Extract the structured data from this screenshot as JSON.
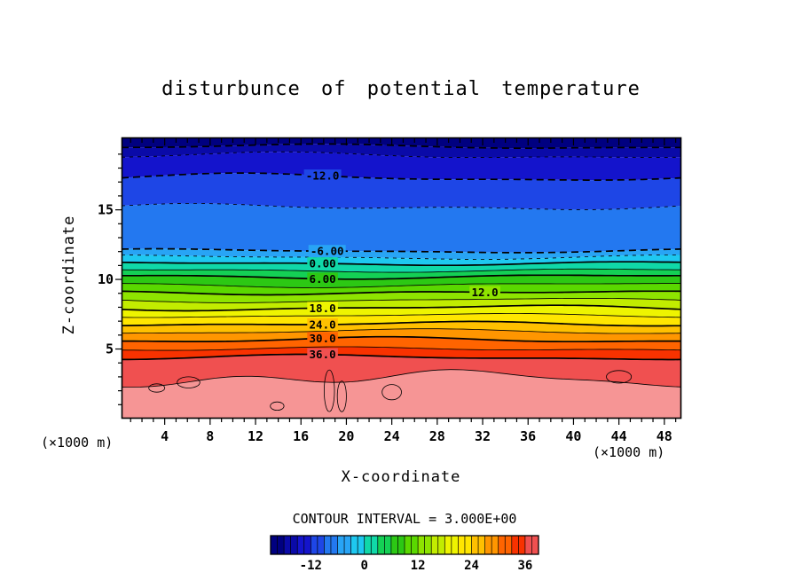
{
  "title": "disturbunce of potential temperature",
  "axis": {
    "x_label": "X-coordinate",
    "z_label": "Z-coordinate",
    "x_unit_note": "(×1000 m)",
    "z_unit_note": "(×1000 m)"
  },
  "contour_note": "CONTOUR INTERVAL = 3.000E+00",
  "chart_data": {
    "type": "heatmap",
    "variant": "filled-contour",
    "title": "disturbunce of potential temperature",
    "xlabel": "X-coordinate (×1000 m)",
    "ylabel": "Z-coordinate (×1000 m)",
    "x_range": [
      0,
      50
    ],
    "z_range": [
      0,
      20.2
    ],
    "x_ticks": [
      4,
      8,
      12,
      16,
      20,
      24,
      28,
      32,
      36,
      40,
      44,
      48
    ],
    "z_ticks": [
      5,
      10,
      15
    ],
    "contour_interval": 3,
    "palette_min": -21,
    "palette": [
      "#000080",
      "#0a0aa8",
      "#1414cc",
      "#1e46e6",
      "#2378f0",
      "#28a4f5",
      "#1ec8f0",
      "#10d8a8",
      "#14d055",
      "#2cc814",
      "#5ad800",
      "#8ee400",
      "#c2ec00",
      "#eef400",
      "#ffe600",
      "#ffc000",
      "#ff9600",
      "#ff6400",
      "#f83200",
      "#f05050"
    ],
    "overflow_color": "#f69595",
    "contours": [
      {
        "level": -18,
        "z_mean": 19.55
      },
      {
        "level": -15,
        "z_mean": 18.9
      },
      {
        "level": -12,
        "z_mean": 17.33,
        "label": "-12.0",
        "label_x": 17.9
      },
      {
        "level": -9,
        "z_mean": 15.2
      },
      {
        "level": -6,
        "z_mean": 12.05,
        "label": "-6.00",
        "label_x": 18.3
      },
      {
        "level": -3,
        "z_mean": 11.6
      },
      {
        "level": 0,
        "z_mean": 11.15,
        "label": "0.00",
        "label_x": 17.9
      },
      {
        "level": 3,
        "z_mean": 10.65
      },
      {
        "level": 6,
        "z_mean": 10.2,
        "label": "6.00",
        "label_x": 17.9
      },
      {
        "level": 9,
        "z_mean": 9.6
      },
      {
        "level": 12,
        "z_mean": 9.05,
        "label": "12.0",
        "label_x": 32.2
      },
      {
        "level": 15,
        "z_mean": 8.5
      },
      {
        "level": 18,
        "z_mean": 7.95,
        "label": "18.0",
        "label_x": 17.9
      },
      {
        "level": 21,
        "z_mean": 7.4
      },
      {
        "level": 24,
        "z_mean": 6.8,
        "label": "24.0",
        "label_x": 17.9
      },
      {
        "level": 27,
        "z_mean": 6.25
      },
      {
        "level": 30,
        "z_mean": 5.65,
        "label": "30.0",
        "label_x": 17.9
      },
      {
        "level": 33,
        "z_mean": 5.0
      },
      {
        "level": 36,
        "z_mean": 4.4,
        "label": "36.0",
        "label_x": 17.9
      },
      {
        "level": 39,
        "z_mean": 2.85
      }
    ],
    "closed_contours": [
      {
        "u": 3.3,
        "z": 2.2,
        "ru": 0.7,
        "rz": 0.3
      },
      {
        "u": 6.1,
        "z": 2.6,
        "ru": 1.0,
        "rz": 0.4
      },
      {
        "u": 13.9,
        "z": 0.9,
        "ru": 0.6,
        "rz": 0.3
      },
      {
        "u": 18.5,
        "z": 2.0,
        "ru": 0.45,
        "rz": 1.5
      },
      {
        "u": 19.6,
        "z": 1.6,
        "ru": 0.4,
        "rz": 1.1
      },
      {
        "u": 24.0,
        "z": 1.9,
        "ru": 0.85,
        "rz": 0.55
      },
      {
        "u": 44.0,
        "z": 3.0,
        "ru": 1.1,
        "rz": 0.45
      }
    ],
    "colorbar": {
      "labels": [
        -12,
        0,
        12,
        24,
        36
      ],
      "min": -21,
      "max": 39
    }
  }
}
